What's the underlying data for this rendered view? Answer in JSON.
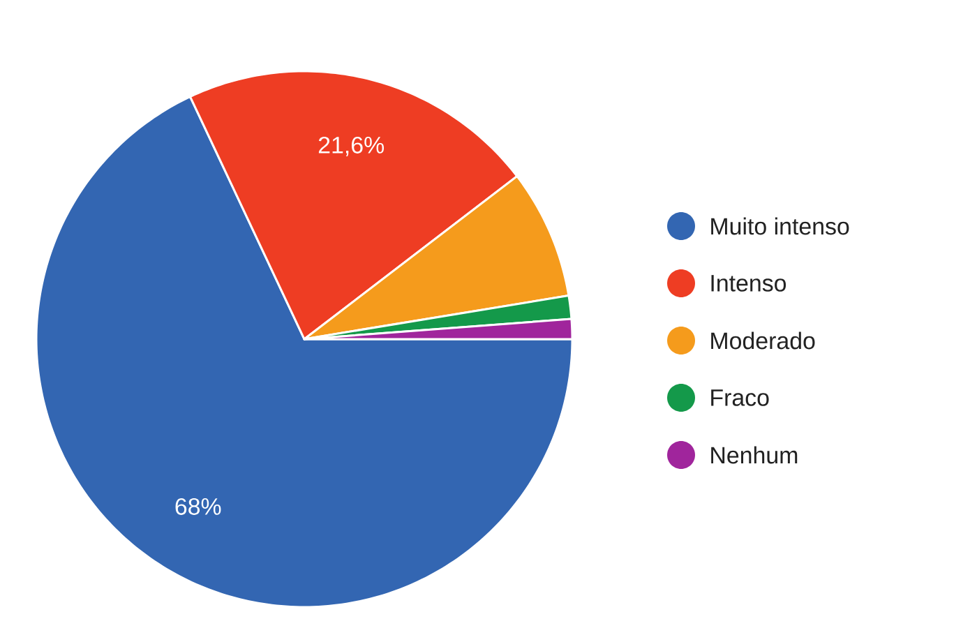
{
  "chart_data": {
    "type": "pie",
    "categories": [
      "Muito intenso",
      "Intenso",
      "Moderado",
      "Fraco",
      "Nenhum"
    ],
    "values": [
      68,
      21.6,
      7.8,
      1.4,
      1.2
    ],
    "value_labels": [
      "68%",
      "21,6%",
      null,
      null,
      null
    ],
    "colors": [
      "#3366b2",
      "#ee3d23",
      "#f59b1c",
      "#14994a",
      "#a0259c"
    ],
    "legend": "right"
  }
}
